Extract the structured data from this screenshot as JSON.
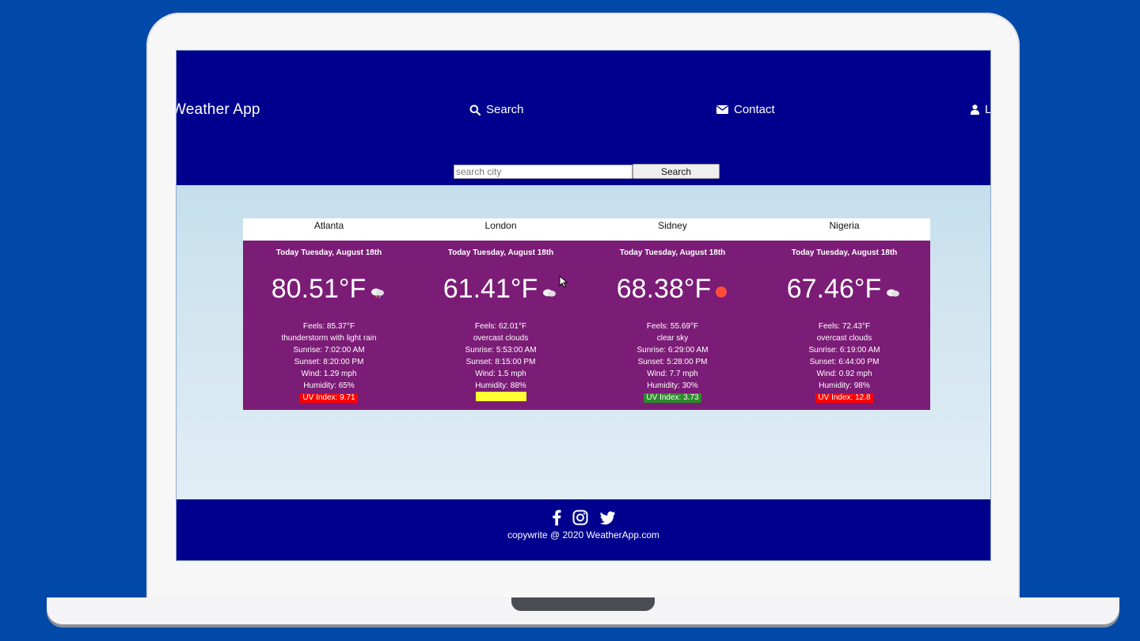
{
  "header": {
    "brand": "Weather App",
    "nav": {
      "search": "Search",
      "contact": "Contact",
      "login": "L"
    },
    "search_placeholder": "search city",
    "search_button": "Search"
  },
  "cards": [
    {
      "city": "Atlanta",
      "date": "Today Tuesday, August 18th",
      "temp": "80.51°F",
      "icon": "thunder-rain-cloud-icon",
      "feels": "Feels: 85.37°F",
      "desc": "thunderstorm with light rain",
      "sunrise": "Sunrise: 7:02:00 AM",
      "sunset": "Sunset: 8:20:00 PM",
      "wind": "Wind: 1.29 mph",
      "humidity": "Humidity: 65%",
      "uv": "UV Index: 9.71",
      "uv_color": "#ff0000"
    },
    {
      "city": "London",
      "date": "Today Tuesday, August 18th",
      "temp": "61.41°F",
      "icon": "cloud-icon",
      "feels": "Feels: 62.01°F",
      "desc": "overcast clouds",
      "sunrise": "Sunrise: 5:53:00 AM",
      "sunset": "Sunset: 8:15:00 PM",
      "wind": "Wind: 1.5 mph",
      "humidity": "Humidity: 88%",
      "uv": "",
      "uv_color": "#ffff33"
    },
    {
      "city": "Sidney",
      "date": "Today Tuesday, August 18th",
      "temp": "68.38°F",
      "icon": "sun-icon",
      "feels": "Feels: 55.69°F",
      "desc": "clear sky",
      "sunrise": "Sunrise: 6:29:00 AM",
      "sunset": "Sunset: 5:28:00 PM",
      "wind": "Wind: 7.7 mph",
      "humidity": "Humidity: 30%",
      "uv": "UV Index: 3.73",
      "uv_color": "#2a8a2a"
    },
    {
      "city": "Nigeria",
      "date": "Today Tuesday, August 18th",
      "temp": "67.46°F",
      "icon": "cloud-icon",
      "feels": "Feels: 72.43°F",
      "desc": "overcast clouds",
      "sunrise": "Sunrise: 6:19:00 AM",
      "sunset": "Sunset: 6:44:00 PM",
      "wind": "Wind: 0.92 mph",
      "humidity": "Humidity: 98%",
      "uv": "UV Index: 12.8",
      "uv_color": "#ff0000"
    }
  ],
  "footer": {
    "social": [
      "facebook-icon",
      "instagram-icon",
      "twitter-icon"
    ],
    "copyright": "copywrite @ 2020 WeatherApp.com"
  },
  "colors": {
    "desktop": "#0049a8",
    "header_bg": "#00008e",
    "card_bg": "#7b1c76"
  }
}
